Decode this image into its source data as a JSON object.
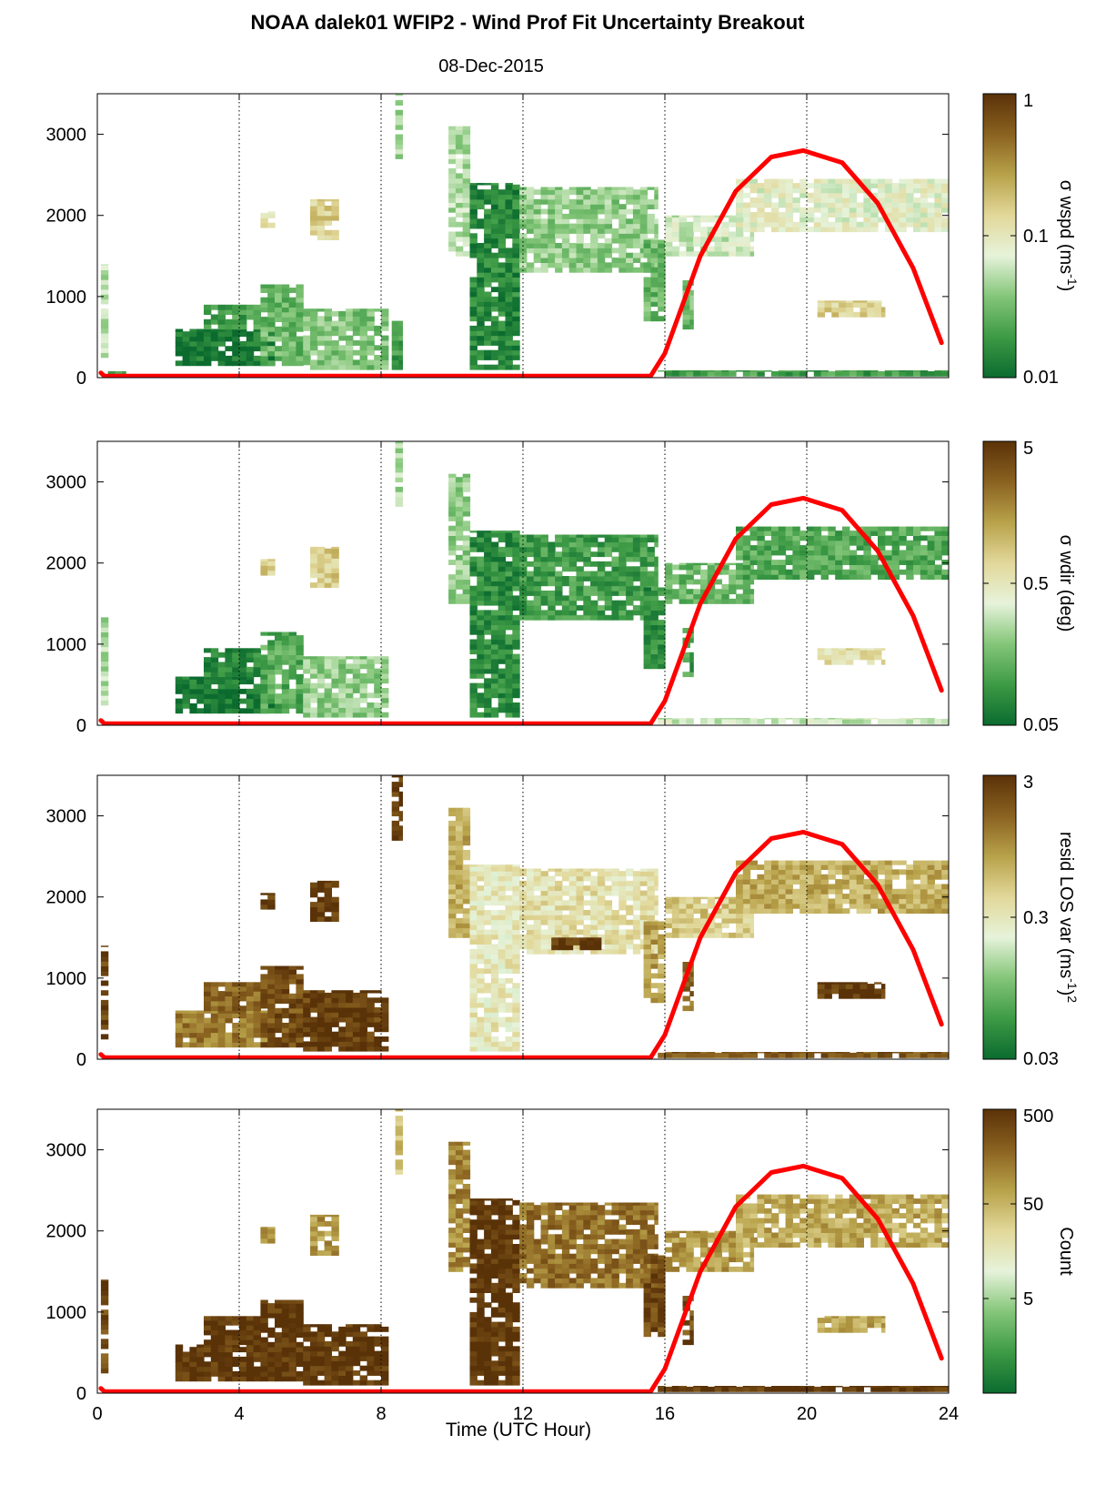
{
  "figure": {
    "title": "NOAA dalek01 WFIP2 - Wind Prof Fit Uncertainty Breakout",
    "subtitle": "08-Dec-2015",
    "xlabel": "Time (UTC Hour)"
  },
  "colors": {
    "curve": "#ff0000",
    "colormap": [
      "#0b6b2f",
      "#3d9a45",
      "#84c679",
      "#e6f3da",
      "#e2d89a",
      "#b8a24a",
      "#8a6220",
      "#5a3208"
    ]
  },
  "chart_data": [
    {
      "type": "heatmap",
      "panel": "wspd",
      "colorbar_label": "σ wspd (ms",
      "colorbar_unit_sup": "-1",
      "colorbar_unit_close": ")",
      "colorbar_scale": "log",
      "colorbar_ticks": [
        "1",
        "0.1",
        "0.01"
      ],
      "colorbar_range": [
        0.01,
        1
      ],
      "xlim": [
        0,
        24
      ],
      "ylim": [
        0,
        3500
      ],
      "xticks": [
        0,
        4,
        8,
        12,
        16,
        20,
        24
      ],
      "yticks": [
        "0",
        "1000",
        "2000",
        "3000"
      ],
      "grid": "vertical dotted",
      "regions": [
        {
          "x": [
            0.1,
            0.3
          ],
          "y": [
            250,
            1400
          ],
          "v": 0.05
        },
        {
          "x": [
            0.3,
            0.8
          ],
          "y": [
            20,
            80
          ],
          "v": 0.02
        },
        {
          "x": [
            2.2,
            5.0
          ],
          "y": [
            150,
            600
          ],
          "v": 0.012
        },
        {
          "x": [
            3.0,
            4.6
          ],
          "y": [
            600,
            900
          ],
          "v": 0.02
        },
        {
          "x": [
            4.6,
            5.8
          ],
          "y": [
            150,
            1150
          ],
          "v": 0.03
        },
        {
          "x": [
            5.8,
            8.2
          ],
          "y": [
            100,
            850
          ],
          "v": 0.035
        },
        {
          "x": [
            8.3,
            8.6
          ],
          "y": [
            100,
            700
          ],
          "v": 0.02
        },
        {
          "x": [
            8.4,
            8.6
          ],
          "y": [
            2700,
            3500
          ],
          "v": 0.05
        },
        {
          "x": [
            4.6,
            5.0
          ],
          "y": [
            1850,
            2050
          ],
          "v": 0.12
        },
        {
          "x": [
            6.0,
            6.8
          ],
          "y": [
            1700,
            2200
          ],
          "v": 0.15
        },
        {
          "x": [
            9.9,
            10.5
          ],
          "y": [
            1500,
            3100
          ],
          "v": 0.05
        },
        {
          "x": [
            10.5,
            11.9
          ],
          "y": [
            100,
            2400
          ],
          "v": 0.015
        },
        {
          "x": [
            11.9,
            15.8
          ],
          "y": [
            1300,
            2350
          ],
          "v": 0.04
        },
        {
          "x": [
            15.4,
            16.0
          ],
          "y": [
            700,
            1700
          ],
          "v": 0.03
        },
        {
          "x": [
            16.5,
            16.8
          ],
          "y": [
            600,
            1200
          ],
          "v": 0.03
        },
        {
          "x": [
            16.0,
            18.5
          ],
          "y": [
            1500,
            2000
          ],
          "v": 0.06
        },
        {
          "x": [
            18.0,
            24.0
          ],
          "y": [
            1800,
            2450
          ],
          "v": 0.08
        },
        {
          "x": [
            20.3,
            22.2
          ],
          "y": [
            750,
            950
          ],
          "v": 0.15
        },
        {
          "x": [
            15.8,
            24.0
          ],
          "y": [
            20,
            90
          ],
          "v": 0.02
        }
      ],
      "curve": {
        "x": [
          0.1,
          0.2,
          15.6,
          16.0,
          17.0,
          18.0,
          19.0,
          19.9,
          21.0,
          22.0,
          23.0,
          23.8
        ],
        "y": [
          60,
          20,
          20,
          300,
          1500,
          2300,
          2720,
          2800,
          2650,
          2150,
          1350,
          430
        ]
      }
    },
    {
      "type": "heatmap",
      "panel": "wdir",
      "colorbar_label": "σ wdir (deg)",
      "colorbar_scale": "log",
      "colorbar_ticks": [
        "5",
        "0.5",
        "0.05"
      ],
      "colorbar_range": [
        0.05,
        5
      ],
      "xlim": [
        0,
        24
      ],
      "ylim": [
        0,
        3500
      ],
      "xticks": [
        0,
        4,
        8,
        12,
        16,
        20,
        24
      ],
      "yticks": [
        "0",
        "1000",
        "2000",
        "3000"
      ],
      "grid": "vertical dotted",
      "regions": [
        {
          "x": [
            0.1,
            0.3
          ],
          "y": [
            250,
            1400
          ],
          "v": 0.25
        },
        {
          "x": [
            2.2,
            5.0
          ],
          "y": [
            150,
            600
          ],
          "v": 0.06
        },
        {
          "x": [
            3.0,
            4.6
          ],
          "y": [
            600,
            950
          ],
          "v": 0.08
        },
        {
          "x": [
            4.6,
            5.8
          ],
          "y": [
            150,
            1150
          ],
          "v": 0.12
        },
        {
          "x": [
            5.8,
            8.2
          ],
          "y": [
            100,
            850
          ],
          "v": 0.2
        },
        {
          "x": [
            8.4,
            8.6
          ],
          "y": [
            2700,
            3500
          ],
          "v": 0.25
        },
        {
          "x": [
            4.6,
            5.0
          ],
          "y": [
            1850,
            2050
          ],
          "v": 0.8
        },
        {
          "x": [
            6.0,
            6.8
          ],
          "y": [
            1700,
            2200
          ],
          "v": 0.8
        },
        {
          "x": [
            9.9,
            10.5
          ],
          "y": [
            1500,
            3100
          ],
          "v": 0.2
        },
        {
          "x": [
            10.5,
            11.9
          ],
          "y": [
            100,
            2400
          ],
          "v": 0.08
        },
        {
          "x": [
            11.9,
            15.8
          ],
          "y": [
            1300,
            2350
          ],
          "v": 0.1
        },
        {
          "x": [
            15.4,
            16.0
          ],
          "y": [
            700,
            1700
          ],
          "v": 0.08
        },
        {
          "x": [
            16.5,
            16.8
          ],
          "y": [
            600,
            1200
          ],
          "v": 0.1
        },
        {
          "x": [
            16.0,
            18.5
          ],
          "y": [
            1500,
            2000
          ],
          "v": 0.15
        },
        {
          "x": [
            18.0,
            24.0
          ],
          "y": [
            1800,
            2450
          ],
          "v": 0.12
        },
        {
          "x": [
            20.3,
            22.2
          ],
          "y": [
            750,
            950
          ],
          "v": 0.6
        },
        {
          "x": [
            15.8,
            24.0
          ],
          "y": [
            20,
            90
          ],
          "v": 0.3
        }
      ],
      "curve": {
        "x": [
          0.1,
          0.2,
          15.6,
          16.0,
          17.0,
          18.0,
          19.0,
          19.9,
          21.0,
          22.0,
          23.0,
          23.8
        ],
        "y": [
          60,
          20,
          20,
          300,
          1500,
          2300,
          2720,
          2800,
          2650,
          2150,
          1350,
          430
        ]
      }
    },
    {
      "type": "heatmap",
      "panel": "resid",
      "colorbar_label": "resid LOS var (ms",
      "colorbar_unit_sup": "-1",
      "colorbar_unit_close": ")",
      "colorbar_unit_sup2": "2",
      "colorbar_scale": "log",
      "colorbar_ticks": [
        "3",
        "0.3",
        "0.03"
      ],
      "colorbar_range": [
        0.03,
        3
      ],
      "xlim": [
        0,
        24
      ],
      "ylim": [
        0,
        3500
      ],
      "xticks": [
        0,
        4,
        8,
        12,
        16,
        20,
        24
      ],
      "yticks": [
        "0",
        "1000",
        "2000",
        "3000"
      ],
      "grid": "vertical dotted",
      "regions": [
        {
          "x": [
            0.1,
            0.3
          ],
          "y": [
            250,
            1400
          ],
          "v": 2.5
        },
        {
          "x": [
            2.2,
            5.0
          ],
          "y": [
            150,
            600
          ],
          "v": 1.2
        },
        {
          "x": [
            3.0,
            4.6
          ],
          "y": [
            600,
            950
          ],
          "v": 1.5
        },
        {
          "x": [
            4.6,
            5.8
          ],
          "y": [
            150,
            1150
          ],
          "v": 2.0
        },
        {
          "x": [
            5.8,
            8.2
          ],
          "y": [
            100,
            850
          ],
          "v": 2.6
        },
        {
          "x": [
            8.3,
            8.6
          ],
          "y": [
            2700,
            3500
          ],
          "v": 2.8
        },
        {
          "x": [
            4.6,
            5.0
          ],
          "y": [
            1850,
            2050
          ],
          "v": 2.8
        },
        {
          "x": [
            6.0,
            6.8
          ],
          "y": [
            1700,
            2200
          ],
          "v": 2.8
        },
        {
          "x": [
            9.9,
            10.5
          ],
          "y": [
            1500,
            3100
          ],
          "v": 0.7
        },
        {
          "x": [
            10.5,
            11.9
          ],
          "y": [
            100,
            2400
          ],
          "v": 0.3
        },
        {
          "x": [
            11.9,
            15.8
          ],
          "y": [
            1300,
            2350
          ],
          "v": 0.35
        },
        {
          "x": [
            12.8,
            14.2
          ],
          "y": [
            1350,
            1500
          ],
          "v": 2.8
        },
        {
          "x": [
            15.4,
            16.0
          ],
          "y": [
            700,
            1700
          ],
          "v": 0.8
        },
        {
          "x": [
            16.5,
            16.8
          ],
          "y": [
            600,
            1200
          ],
          "v": 1.5
        },
        {
          "x": [
            16.0,
            18.5
          ],
          "y": [
            1500,
            2000
          ],
          "v": 0.5
        },
        {
          "x": [
            18.0,
            24.0
          ],
          "y": [
            1800,
            2450
          ],
          "v": 0.7
        },
        {
          "x": [
            20.3,
            22.2
          ],
          "y": [
            750,
            950
          ],
          "v": 2.8
        },
        {
          "x": [
            15.8,
            24.0
          ],
          "y": [
            20,
            90
          ],
          "v": 1.8
        }
      ],
      "curve": {
        "x": [
          0.1,
          0.2,
          15.6,
          16.0,
          17.0,
          18.0,
          19.0,
          19.9,
          21.0,
          22.0,
          23.0,
          23.8
        ],
        "y": [
          60,
          20,
          20,
          300,
          1500,
          2300,
          2720,
          2800,
          2650,
          2150,
          1350,
          430
        ]
      }
    },
    {
      "type": "heatmap",
      "panel": "count",
      "colorbar_label": "Count",
      "colorbar_scale": "log",
      "colorbar_ticks": [
        "500",
        "50",
        "5"
      ],
      "colorbar_range": [
        0.5,
        500
      ],
      "xlim": [
        0,
        24
      ],
      "ylim": [
        0,
        3500
      ],
      "xticks": [
        0,
        4,
        8,
        12,
        16,
        20,
        24
      ],
      "yticks": [
        "0",
        "1000",
        "2000",
        "3000"
      ],
      "grid": "vertical dotted",
      "regions": [
        {
          "x": [
            0.1,
            0.3
          ],
          "y": [
            250,
            1400
          ],
          "v": 300
        },
        {
          "x": [
            2.2,
            5.0
          ],
          "y": [
            150,
            600
          ],
          "v": 480
        },
        {
          "x": [
            3.0,
            4.6
          ],
          "y": [
            600,
            950
          ],
          "v": 480
        },
        {
          "x": [
            4.6,
            5.8
          ],
          "y": [
            150,
            1150
          ],
          "v": 480
        },
        {
          "x": [
            5.8,
            8.2
          ],
          "y": [
            100,
            850
          ],
          "v": 480
        },
        {
          "x": [
            8.4,
            8.6
          ],
          "y": [
            2700,
            3500
          ],
          "v": 40
        },
        {
          "x": [
            4.6,
            5.0
          ],
          "y": [
            1850,
            2050
          ],
          "v": 80
        },
        {
          "x": [
            6.0,
            6.8
          ],
          "y": [
            1700,
            2200
          ],
          "v": 80
        },
        {
          "x": [
            9.9,
            10.5
          ],
          "y": [
            1500,
            3100
          ],
          "v": 100
        },
        {
          "x": [
            10.5,
            11.9
          ],
          "y": [
            100,
            2400
          ],
          "v": 480
        },
        {
          "x": [
            11.9,
            15.8
          ],
          "y": [
            1300,
            2350
          ],
          "v": 150
        },
        {
          "x": [
            15.4,
            16.0
          ],
          "y": [
            700,
            1700
          ],
          "v": 300
        },
        {
          "x": [
            16.5,
            16.8
          ],
          "y": [
            600,
            1200
          ],
          "v": 300
        },
        {
          "x": [
            16.0,
            18.5
          ],
          "y": [
            1500,
            2000
          ],
          "v": 80
        },
        {
          "x": [
            18.0,
            24.0
          ],
          "y": [
            1800,
            2450
          ],
          "v": 60
        },
        {
          "x": [
            20.3,
            22.2
          ],
          "y": [
            750,
            950
          ],
          "v": 60
        },
        {
          "x": [
            15.8,
            24.0
          ],
          "y": [
            20,
            90
          ],
          "v": 480
        }
      ],
      "curve": {
        "x": [
          0.1,
          0.2,
          15.6,
          16.0,
          17.0,
          18.0,
          19.0,
          19.9,
          21.0,
          22.0,
          23.0,
          23.8
        ],
        "y": [
          60,
          20,
          20,
          300,
          1500,
          2300,
          2720,
          2800,
          2650,
          2150,
          1350,
          430
        ]
      }
    }
  ]
}
